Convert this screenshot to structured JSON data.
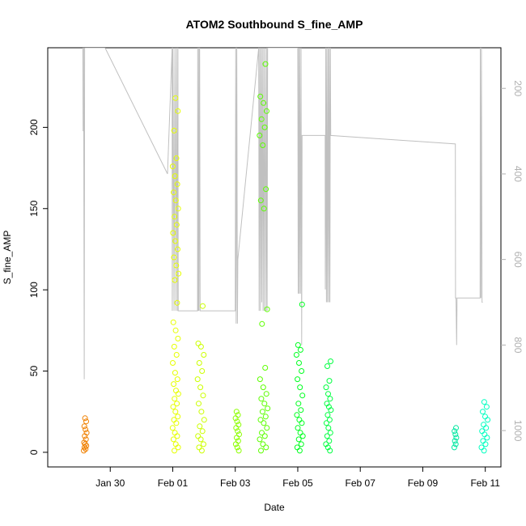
{
  "chart_data": {
    "type": "scatter",
    "title": "ATOM2 Southbound S_fine_AMP",
    "xlabel": "Date",
    "ylabel": "S_fine_AMP",
    "xlim": [
      "2024-01-28T00:00",
      "2024-02-11T12:00"
    ],
    "ylim": [
      -9,
      249
    ],
    "y_ticks": [
      0,
      50,
      100,
      150,
      200
    ],
    "x_ticks": [
      {
        "label": "Jan 30",
        "date": "2024-01-30"
      },
      {
        "label": "Feb 01",
        "date": "2024-02-01"
      },
      {
        "label": "Feb 03",
        "date": "2024-02-03"
      },
      {
        "label": "Feb 05",
        "date": "2024-02-05"
      },
      {
        "label": "Feb 07",
        "date": "2024-02-07"
      },
      {
        "label": "Feb 09",
        "date": "2024-02-09"
      },
      {
        "label": "Feb 11",
        "date": "2024-02-11"
      }
    ],
    "secondary_axis": {
      "side": "right",
      "reversed": true,
      "ylim": [
        1085,
        105
      ],
      "ticks": [
        200,
        400,
        600,
        800,
        1000
      ],
      "color": "#b0b0b0"
    },
    "grid": false,
    "legend": "none",
    "clusters": [
      {
        "start": "2024-01-29T03:40",
        "end": "2024-01-29T06:00",
        "color": "#f08000",
        "values": [
          1,
          2,
          3,
          4,
          5,
          6,
          8,
          10,
          12,
          14,
          16,
          19,
          21
        ]
      },
      {
        "start": "2024-01-31T23:50",
        "end": "2024-02-01T04:30",
        "color": "#e6ff00",
        "values": [
          1,
          3,
          5,
          8,
          10,
          12,
          15,
          18,
          20,
          22,
          25,
          28,
          30,
          33,
          36,
          38,
          42,
          45,
          49,
          55,
          60,
          65,
          70,
          75,
          80,
          92,
          106,
          110,
          115,
          120,
          125,
          130,
          135,
          140,
          145,
          150,
          155,
          160,
          165,
          170,
          176,
          181,
          198,
          210,
          218
        ]
      },
      {
        "start": "2024-02-01T19:00",
        "end": "2024-02-02T00:30",
        "color": "#ccff00",
        "values": [
          1,
          3,
          5,
          8,
          10,
          13,
          16,
          20,
          25,
          30,
          35,
          40,
          45,
          50,
          55,
          60,
          65,
          67,
          90
        ]
      },
      {
        "start": "2024-02-03T00:00",
        "end": "2024-02-03T03:00",
        "color": "#8cff00",
        "values": [
          1,
          3,
          5,
          7,
          9,
          11,
          13,
          15,
          17,
          19,
          21,
          23,
          25
        ]
      },
      {
        "start": "2024-02-03T18:30",
        "end": "2024-02-04T00:50",
        "color": "#5cff00",
        "values": [
          1,
          3,
          5,
          8,
          10,
          12,
          15,
          18,
          20,
          22,
          25,
          27,
          30,
          33,
          36,
          40,
          45,
          52,
          79,
          88,
          150,
          155,
          162,
          189,
          195,
          200,
          205,
          210,
          215,
          219,
          239
        ]
      },
      {
        "start": "2024-02-04T23:00",
        "end": "2024-02-05T04:00",
        "color": "#00ff20",
        "values": [
          1,
          3,
          5,
          8,
          10,
          12,
          15,
          18,
          20,
          23,
          26,
          30,
          35,
          40,
          45,
          50,
          55,
          60,
          63,
          66,
          91
        ]
      },
      {
        "start": "2024-02-05T21:30",
        "end": "2024-02-06T01:30",
        "color": "#00ff40",
        "values": [
          1,
          3,
          5,
          7,
          10,
          12,
          15,
          18,
          20,
          23,
          26,
          28,
          30,
          33,
          36,
          40,
          44,
          53,
          56
        ]
      },
      {
        "start": "2024-02-10T00:00",
        "end": "2024-02-10T01:50",
        "color": "#00e8a0",
        "values": [
          3,
          5,
          7,
          9,
          11,
          13,
          15
        ]
      },
      {
        "start": "2024-02-10T21:00",
        "end": "2024-02-11T02:00",
        "color": "#00ffc0",
        "values": [
          1,
          3,
          5,
          7,
          9,
          11,
          13,
          15,
          17,
          20,
          22,
          25,
          28,
          31
        ]
      }
    ],
    "depth_line": {
      "color": "#c0c0c0",
      "points": [
        [
          "2024-01-29T03:00",
          105
        ],
        [
          "2024-01-29T03:10",
          300
        ],
        [
          "2024-01-29T03:30",
          105
        ],
        [
          "2024-01-29T04:00",
          880
        ],
        [
          "2024-01-29T04:20",
          105
        ],
        [
          "2024-01-29T05:00",
          105
        ],
        [
          "2024-01-29T20:00",
          105
        ],
        [
          "2024-01-31T20:00",
          400
        ],
        [
          "2024-01-31T23:30",
          105
        ],
        [
          "2024-01-31T23:40",
          720
        ],
        [
          "2024-02-01T00:10",
          105
        ],
        [
          "2024-02-01T01:00",
          720
        ],
        [
          "2024-02-01T01:40",
          105
        ],
        [
          "2024-02-01T02:30",
          720
        ],
        [
          "2024-02-01T03:00",
          105
        ],
        [
          "2024-02-01T03:40",
          720
        ],
        [
          "2024-02-01T04:00",
          105
        ],
        [
          "2024-02-01T04:10",
          720
        ],
        [
          "2024-02-01T19:00",
          720
        ],
        [
          "2024-02-01T19:10",
          105
        ],
        [
          "2024-02-01T19:30",
          720
        ],
        [
          "2024-02-01T20:00",
          105
        ],
        [
          "2024-02-01T20:10",
          720
        ],
        [
          "2024-02-01T20:40",
          105
        ],
        [
          "2024-02-01T21:00",
          720
        ],
        [
          "2024-02-03T00:00",
          720
        ],
        [
          "2024-02-03T00:20",
          105
        ],
        [
          "2024-02-03T00:40",
          750
        ],
        [
          "2024-02-03T01:10",
          105
        ],
        [
          "2024-02-03T01:40",
          750
        ],
        [
          "2024-02-03T02:00",
          600
        ],
        [
          "2024-02-03T18:00",
          105
        ],
        [
          "2024-02-03T18:20",
          720
        ],
        [
          "2024-02-03T18:50",
          105
        ],
        [
          "2024-02-03T19:20",
          720
        ],
        [
          "2024-02-03T19:50",
          105
        ],
        [
          "2024-02-03T20:20",
          700
        ],
        [
          "2024-02-03T20:50",
          105
        ],
        [
          "2024-02-03T21:20",
          720
        ],
        [
          "2024-02-03T21:50",
          105
        ],
        [
          "2024-02-03T22:20",
          720
        ],
        [
          "2024-02-03T23:00",
          105
        ],
        [
          "2024-02-03T23:40",
          720
        ],
        [
          "2024-02-04T00:10",
          105
        ],
        [
          "2024-02-04T00:30",
          720
        ],
        [
          "2024-02-04T00:50",
          105
        ],
        [
          "2024-02-05T00:00",
          105
        ],
        [
          "2024-02-05T00:20",
          680
        ],
        [
          "2024-02-05T00:40",
          105
        ],
        [
          "2024-02-05T01:10",
          680
        ],
        [
          "2024-02-05T01:30",
          105
        ],
        [
          "2024-02-05T02:00",
          680
        ],
        [
          "2024-02-05T02:30",
          105
        ],
        [
          "2024-02-05T03:00",
          800
        ],
        [
          "2024-02-05T03:20",
          310
        ],
        [
          "2024-02-05T03:40",
          310
        ],
        [
          "2024-02-05T21:00",
          310
        ],
        [
          "2024-02-05T21:10",
          670
        ],
        [
          "2024-02-05T21:30",
          105
        ],
        [
          "2024-02-05T22:00",
          700
        ],
        [
          "2024-02-05T22:20",
          105
        ],
        [
          "2024-02-05T22:50",
          700
        ],
        [
          "2024-02-05T23:20",
          105
        ],
        [
          "2024-02-05T23:50",
          700
        ],
        [
          "2024-02-06T00:10",
          105
        ],
        [
          "2024-02-06T00:40",
          700
        ],
        [
          "2024-02-06T01:00",
          105
        ],
        [
          "2024-02-06T01:20",
          310
        ],
        [
          "2024-02-10T01:00",
          330
        ],
        [
          "2024-02-10T01:10",
          690
        ],
        [
          "2024-02-10T01:30",
          690
        ],
        [
          "2024-02-10T02:00",
          800
        ],
        [
          "2024-02-10T02:20",
          690
        ],
        [
          "2024-02-10T20:00",
          690
        ],
        [
          "2024-02-10T20:10",
          105
        ],
        [
          "2024-02-10T20:40",
          690
        ],
        [
          "2024-02-10T21:00",
          105
        ],
        [
          "2024-02-10T21:30",
          700
        ],
        [
          "2024-02-10T22:00",
          700
        ]
      ]
    }
  }
}
